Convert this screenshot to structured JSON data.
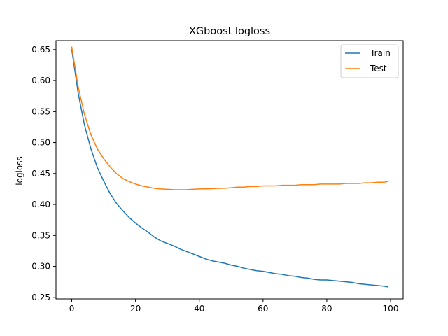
{
  "chart_data": {
    "type": "line",
    "title": "XGboost logloss",
    "xlabel": "",
    "ylabel": "logloss",
    "xlim": [
      -4.95,
      103.95
    ],
    "ylim": [
      0.2475,
      0.6645
    ],
    "xticks": [
      0,
      20,
      40,
      60,
      80,
      100
    ],
    "yticks": [
      0.25,
      0.3,
      0.35,
      0.4,
      0.45,
      0.5,
      0.55,
      0.6,
      0.65
    ],
    "ytick_labels": [
      "0.25",
      "0.30",
      "0.35",
      "0.40",
      "0.45",
      "0.50",
      "0.55",
      "0.60",
      "0.65"
    ],
    "xtick_labels": [
      "0",
      "20",
      "40",
      "60",
      "80",
      "100"
    ],
    "legend_position": "upper-right",
    "grid": false,
    "x": [
      0,
      2,
      4,
      6,
      8,
      10,
      12,
      14,
      16,
      18,
      20,
      22,
      24,
      26,
      28,
      30,
      32,
      34,
      36,
      38,
      40,
      42,
      44,
      46,
      48,
      50,
      52,
      54,
      56,
      58,
      60,
      62,
      64,
      66,
      68,
      70,
      72,
      74,
      76,
      78,
      80,
      82,
      84,
      86,
      88,
      90,
      92,
      94,
      96,
      98,
      99
    ],
    "series": [
      {
        "name": "Train",
        "color": "#1f77b4",
        "values": [
          0.65,
          0.58,
          0.528,
          0.49,
          0.46,
          0.438,
          0.418,
          0.402,
          0.39,
          0.379,
          0.37,
          0.362,
          0.355,
          0.347,
          0.341,
          0.337,
          0.333,
          0.328,
          0.324,
          0.32,
          0.316,
          0.312,
          0.309,
          0.307,
          0.305,
          0.302,
          0.3,
          0.297,
          0.295,
          0.293,
          0.292,
          0.29,
          0.288,
          0.287,
          0.285,
          0.284,
          0.282,
          0.281,
          0.279,
          0.278,
          0.278,
          0.277,
          0.276,
          0.275,
          0.274,
          0.272,
          0.271,
          0.27,
          0.269,
          0.268,
          0.267
        ]
      },
      {
        "name": "Test",
        "color": "#ff7f0e",
        "values": [
          0.654,
          0.59,
          0.545,
          0.513,
          0.49,
          0.474,
          0.461,
          0.45,
          0.442,
          0.437,
          0.433,
          0.43,
          0.428,
          0.426,
          0.425,
          0.4245,
          0.424,
          0.4238,
          0.424,
          0.4245,
          0.425,
          0.4252,
          0.4255,
          0.426,
          0.4262,
          0.427,
          0.428,
          0.428,
          0.429,
          0.429,
          0.43,
          0.43,
          0.43,
          0.431,
          0.431,
          0.431,
          0.432,
          0.432,
          0.432,
          0.433,
          0.433,
          0.433,
          0.433,
          0.434,
          0.434,
          0.434,
          0.435,
          0.435,
          0.436,
          0.436,
          0.437
        ]
      }
    ]
  }
}
